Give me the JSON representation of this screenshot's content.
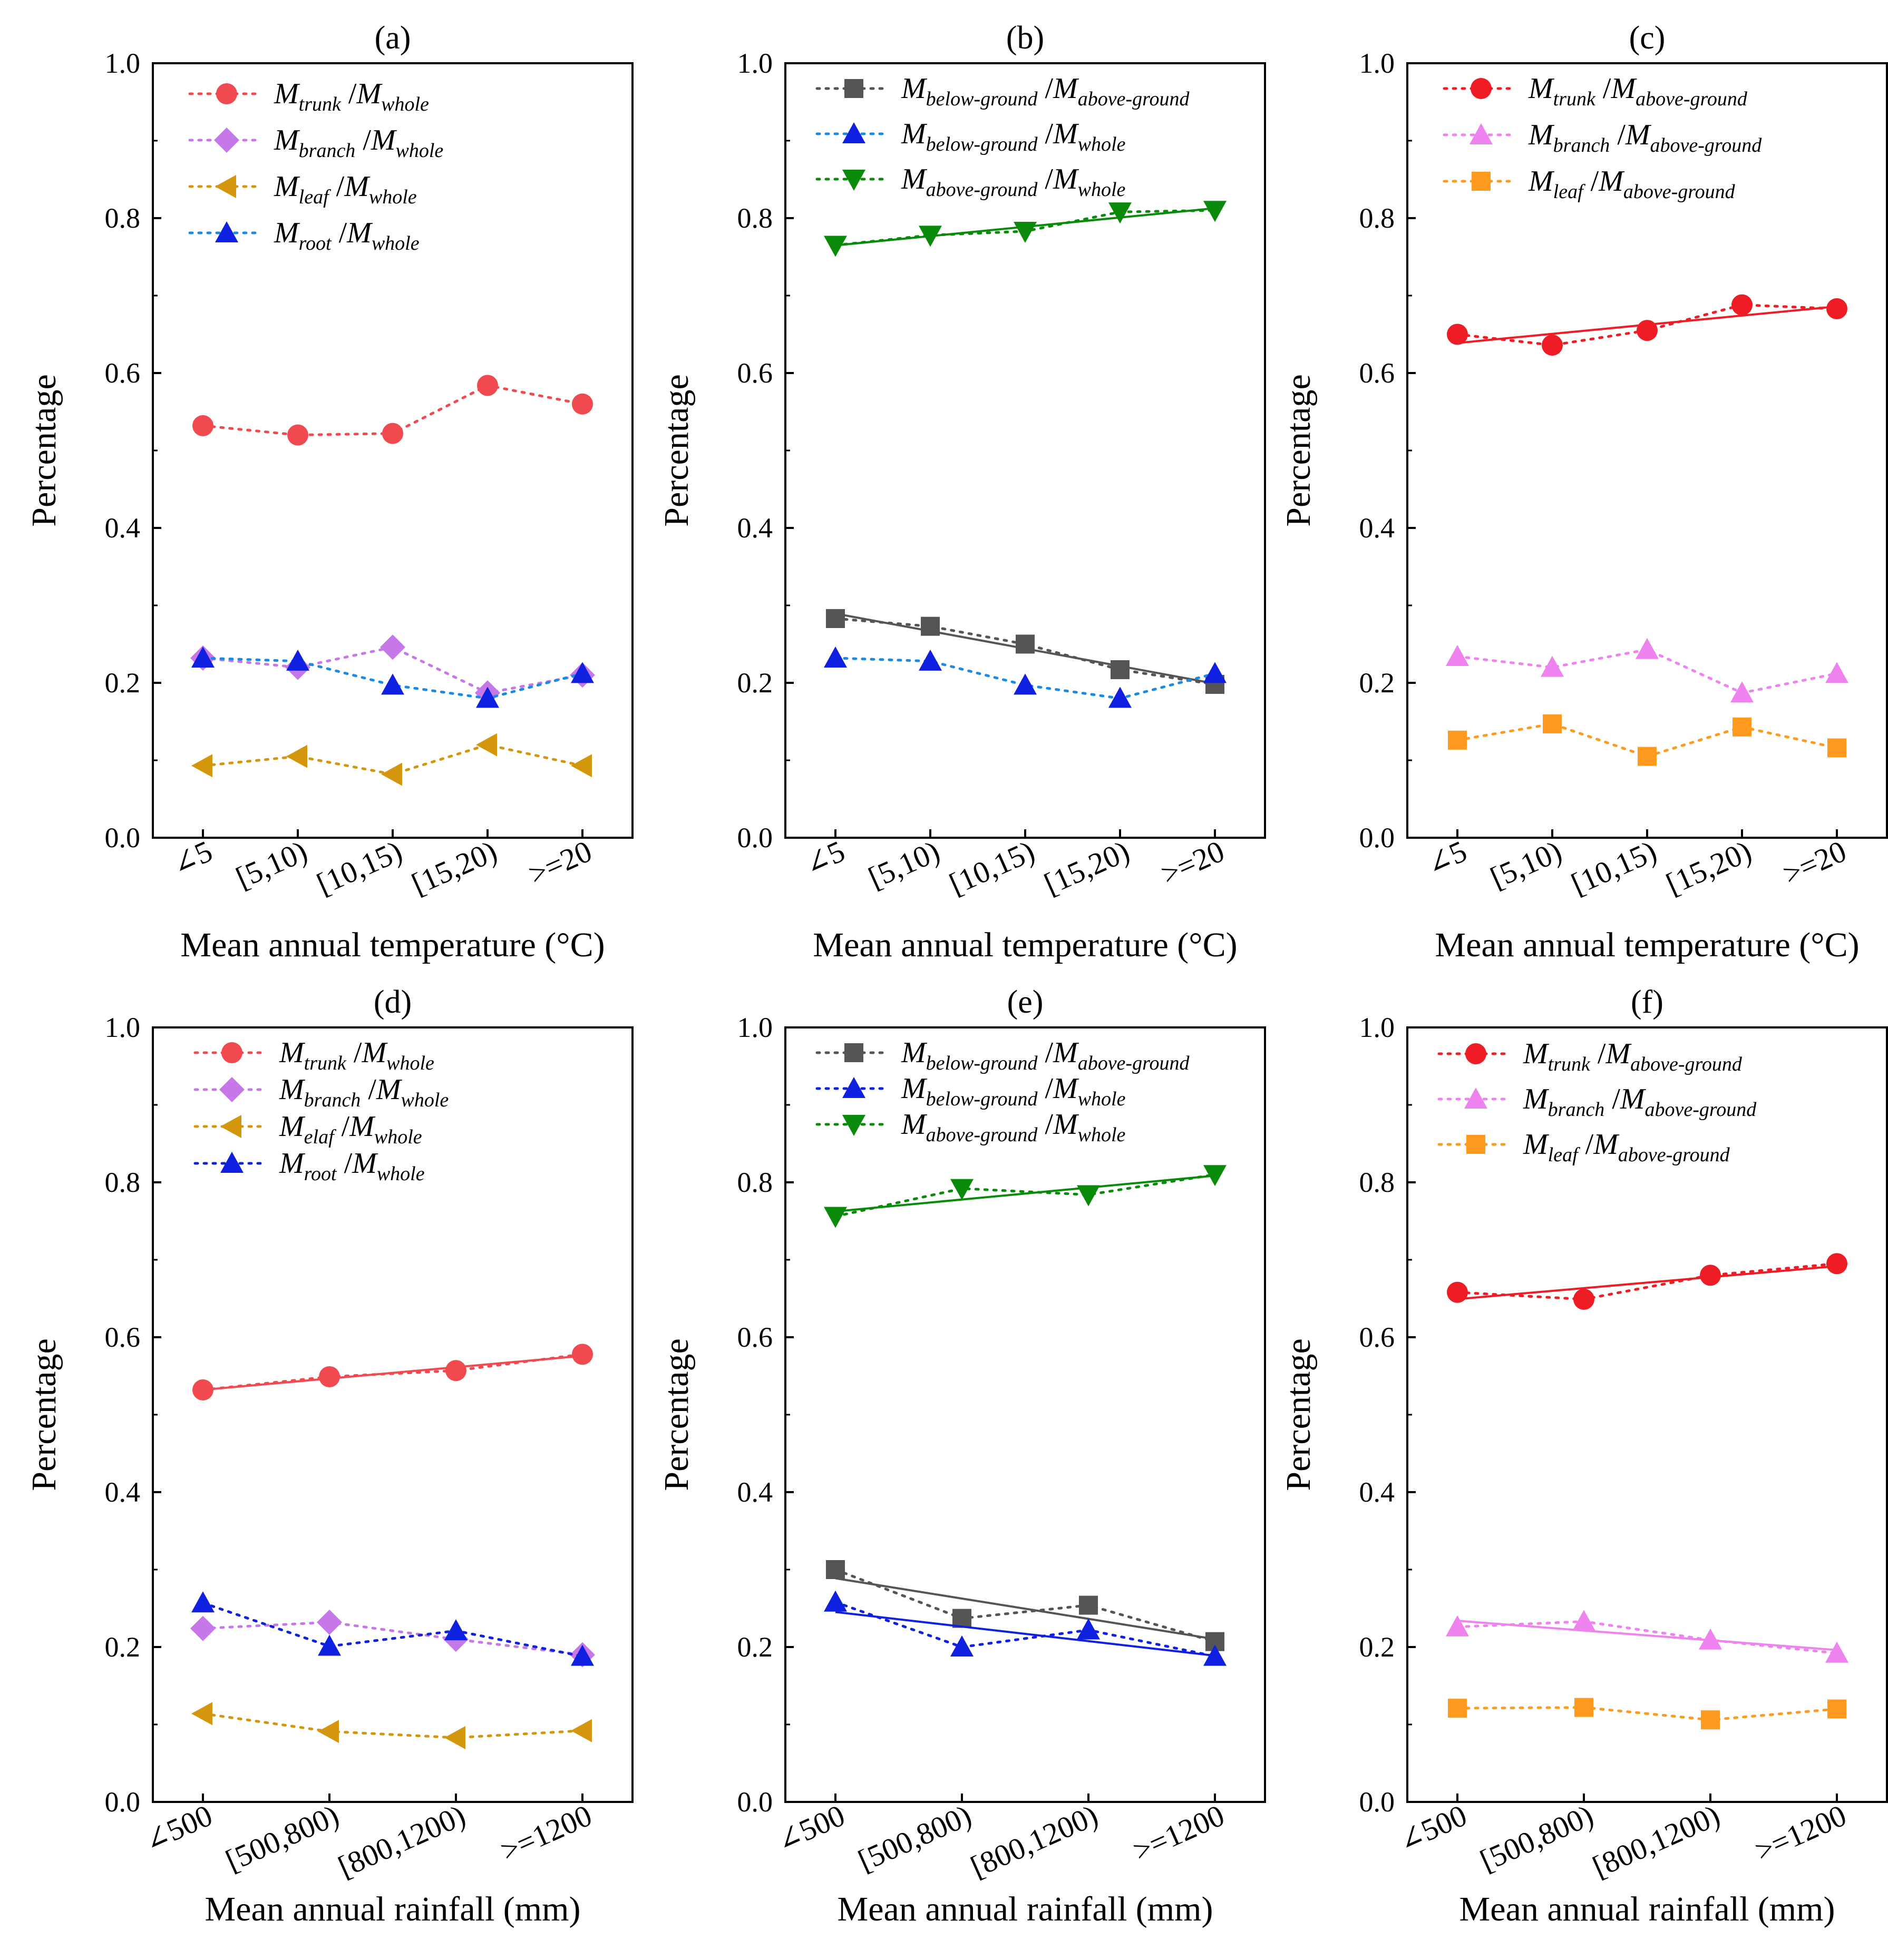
{
  "figure": {
    "chart_data": [
      {
        "type": "line",
        "panel": "(a)",
        "xlabel": "Mean annual temperature (°C)",
        "ylabel": "Percentage",
        "ylim": [
          0.0,
          1.0
        ],
        "yticks": [
          "0.0",
          "0.2",
          "0.4",
          "0.6",
          "0.8",
          "1.0"
        ],
        "categories": [
          "∠5",
          "[5,10)",
          "[10,15)",
          "[15,20)",
          ">=20"
        ],
        "series": [
          {
            "name": "M",
            "sub": "trunk",
            "name2": "M",
            "sub2": "whole",
            "color": "#f04a50",
            "marker": "circle",
            "values": [
              0.532,
              0.52,
              0.522,
              0.584,
              0.56
            ],
            "fit": false
          },
          {
            "name": "M",
            "sub": "branch",
            "name2": "M",
            "sub2": "whole",
            "color": "#c678e8",
            "marker": "diamond",
            "values": [
              0.232,
              0.22,
              0.246,
              0.187,
              0.21
            ],
            "fit": false
          },
          {
            "name": "M",
            "sub": "leaf",
            "name2": "M",
            "sub2": "whole",
            "color": "#d4960c",
            "marker": "triangle-left",
            "values": [
              0.093,
              0.105,
              0.082,
              0.12,
              0.093
            ],
            "fit": false
          },
          {
            "name": "M",
            "sub": "root",
            "name2": "M",
            "sub2": "whole",
            "color": "#1020e0",
            "marker": "triangle-up",
            "values": [
              0.232,
              0.228,
              0.197,
              0.18,
              0.212
            ],
            "fit": false,
            "linecolor": "#1a8be0"
          }
        ]
      },
      {
        "type": "line",
        "panel": "(b)",
        "xlabel": "Mean annual temperature (°C)",
        "ylabel": "Percentage",
        "ylim": [
          0.0,
          1.0
        ],
        "yticks": [
          "0.0",
          "0.2",
          "0.4",
          "0.6",
          "0.8",
          "1.0"
        ],
        "categories": [
          "∠5",
          "[5,10)",
          "[10,15)",
          "[15,20)",
          ">=20"
        ],
        "series": [
          {
            "name": "M",
            "sub": "below-ground",
            "name2": "M",
            "sub2": "above-ground",
            "color": "#555555",
            "marker": "square",
            "values": [
              0.283,
              0.273,
              0.25,
              0.217,
              0.198
            ],
            "fit": true
          },
          {
            "name": "M",
            "sub": "below-ground",
            "name2": "M",
            "sub2": "whole",
            "color": "#1020e0",
            "marker": "triangle-up",
            "values": [
              0.232,
              0.228,
              0.197,
              0.18,
              0.212
            ],
            "fit": false,
            "linecolor": "#1a8be0"
          },
          {
            "name": "M",
            "sub": "above-ground",
            "name2": "M",
            "sub2": "whole",
            "color": "#0a8a0a",
            "marker": "triangle-down",
            "values": [
              0.765,
              0.778,
              0.783,
              0.808,
              0.81
            ],
            "fit": true
          }
        ]
      },
      {
        "type": "line",
        "panel": "(c)",
        "xlabel": "Mean annual temperature (°C)",
        "ylabel": "Percentage",
        "ylim": [
          0.0,
          1.0
        ],
        "yticks": [
          "0.0",
          "0.2",
          "0.4",
          "0.6",
          "0.8",
          "1.0"
        ],
        "categories": [
          "∠5",
          "[5,10)",
          "[10,15)",
          "[15,20)",
          ">=20"
        ],
        "series": [
          {
            "name": "M",
            "sub": "trunk",
            "name2": "M",
            "sub2": "above-ground",
            "color": "#ee1c24",
            "marker": "circle",
            "values": [
              0.65,
              0.636,
              0.655,
              0.688,
              0.683
            ],
            "fit": true
          },
          {
            "name": "M",
            "sub": "branch",
            "name2": "M",
            "sub2": "above-ground",
            "color": "#ee82ee",
            "marker": "triangle-up",
            "values": [
              0.234,
              0.22,
              0.243,
              0.187,
              0.212
            ],
            "fit": false
          },
          {
            "name": "M",
            "sub": "leaf",
            "name2": "M",
            "sub2": "above-ground",
            "color": "#ff9a1e",
            "marker": "square",
            "values": [
              0.126,
              0.147,
              0.105,
              0.143,
              0.116
            ],
            "fit": false
          }
        ]
      },
      {
        "type": "line",
        "panel": "(d)",
        "xlabel": "Mean annual rainfall (mm)",
        "ylabel": "Percentage",
        "ylim": [
          0.0,
          1.0
        ],
        "yticks": [
          "0.0",
          "0.2",
          "0.4",
          "0.6",
          "0.8",
          "1.0"
        ],
        "categories": [
          "∠500",
          "[500,800)",
          "[800,1200)",
          ">=1200"
        ],
        "series": [
          {
            "name": "M",
            "sub": "trunk",
            "name2": "M",
            "sub2": "whole",
            "color": "#f04a50",
            "marker": "circle",
            "values": [
              0.532,
              0.549,
              0.557,
              0.578
            ],
            "fit": true
          },
          {
            "name": "M",
            "sub": "branch",
            "name2": "M",
            "sub2": "whole",
            "color": "#c678e8",
            "marker": "diamond",
            "values": [
              0.224,
              0.232,
              0.21,
              0.19
            ],
            "fit": false
          },
          {
            "name": "M",
            "sub": "elaf",
            "name2": "M",
            "sub2": "whole",
            "color": "#d4960c",
            "marker": "triangle-left",
            "values": [
              0.114,
              0.091,
              0.083,
              0.092
            ],
            "fit": false
          },
          {
            "name": "M",
            "sub": "root",
            "name2": "M",
            "sub2": "whole",
            "color": "#1020e0",
            "marker": "triangle-up",
            "values": [
              0.257,
              0.201,
              0.221,
              0.188
            ],
            "fit": false
          }
        ]
      },
      {
        "type": "line",
        "panel": "(e)",
        "xlabel": "Mean annual rainfall (mm)",
        "ylabel": "Percentage",
        "ylim": [
          0.0,
          1.0
        ],
        "yticks": [
          "0.0",
          "0.2",
          "0.4",
          "0.6",
          "0.8",
          "1.0"
        ],
        "categories": [
          "∠500",
          "[500,800)",
          "[800,1200)",
          ">=1200"
        ],
        "series": [
          {
            "name": "M",
            "sub": "below-ground",
            "name2": "M",
            "sub2": "above-ground",
            "color": "#555555",
            "marker": "square",
            "values": [
              0.3,
              0.237,
              0.254,
              0.207
            ],
            "fit": true
          },
          {
            "name": "M",
            "sub": "below-ground",
            "name2": "M",
            "sub2": "whole",
            "color": "#1020e0",
            "marker": "triangle-up",
            "values": [
              0.258,
              0.2,
              0.222,
              0.188
            ],
            "fit": true
          },
          {
            "name": "M",
            "sub": "above-ground",
            "name2": "M",
            "sub2": "whole",
            "color": "#0a8a0a",
            "marker": "triangle-down",
            "values": [
              0.756,
              0.792,
              0.784,
              0.81
            ],
            "fit": true
          }
        ]
      },
      {
        "type": "line",
        "panel": "(f)",
        "xlabel": "Mean annual rainfall (mm)",
        "ylabel": "Percentage",
        "ylim": [
          0.0,
          1.0
        ],
        "yticks": [
          "0.0",
          "0.2",
          "0.4",
          "0.6",
          "0.8",
          "1.0"
        ],
        "categories": [
          "∠500",
          "[500,800)",
          "[800,1200)",
          ">=1200"
        ],
        "series": [
          {
            "name": "M",
            "sub": "trunk",
            "name2": "M",
            "sub2": "above-ground",
            "color": "#ee1c24",
            "marker": "circle",
            "values": [
              0.658,
              0.649,
              0.68,
              0.695
            ],
            "fit": true
          },
          {
            "name": "M",
            "sub": "branch",
            "name2": "M",
            "sub2": "above-ground",
            "color": "#ee82ee",
            "marker": "triangle-up",
            "values": [
              0.226,
              0.233,
              0.209,
              0.192
            ],
            "fit": true
          },
          {
            "name": "M",
            "sub": "leaf",
            "name2": "M",
            "sub2": "above-ground",
            "color": "#ff9a1e",
            "marker": "square",
            "values": [
              0.121,
              0.122,
              0.106,
              0.12
            ],
            "fit": false
          }
        ]
      }
    ]
  }
}
